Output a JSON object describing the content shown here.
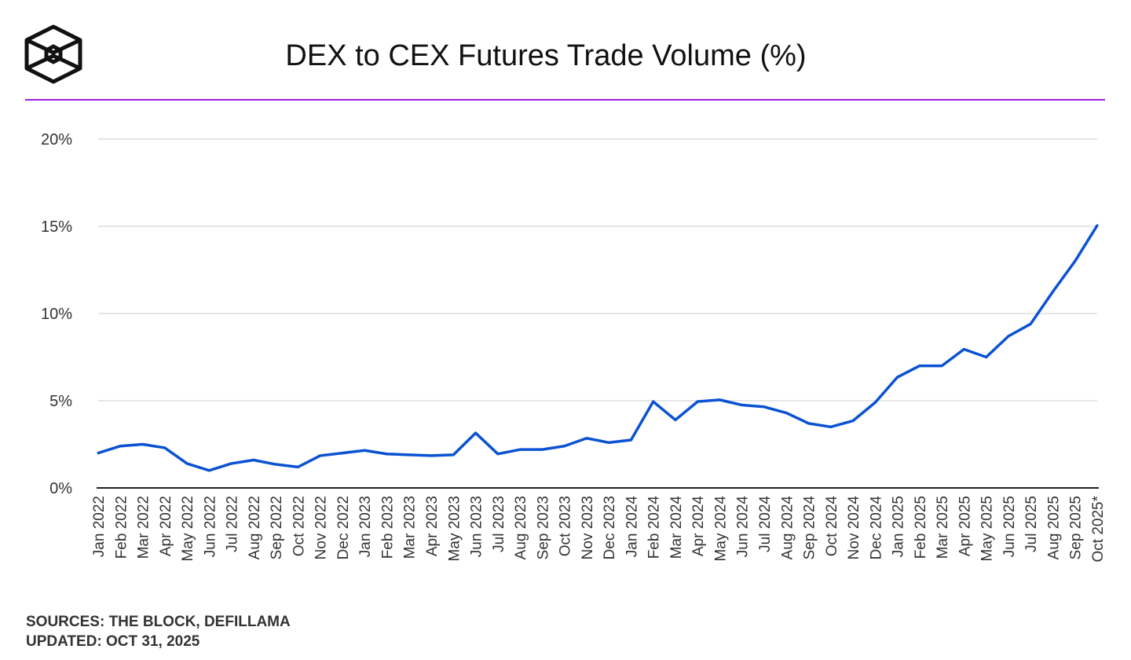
{
  "header": {
    "title": "DEX to CEX Futures Trade Volume (%)",
    "logo": "The Block"
  },
  "footer": {
    "sources": "SOURCES: THE BLOCK, DEFILLAMA",
    "updated": "UPDATED: OCT 31, 2025"
  },
  "colors": {
    "line": "#0a52d1",
    "rule": "#a020e0",
    "grid": "#e6e6e6"
  },
  "chart_data": {
    "type": "line",
    "title": "DEX to CEX Futures Trade Volume (%)",
    "xlabel": "",
    "ylabel": "",
    "ylim": [
      0,
      20
    ],
    "yticks": [
      0,
      5,
      10,
      15,
      20
    ],
    "ytick_labels": [
      "0%",
      "5%",
      "10%",
      "15%",
      "20%"
    ],
    "grid": true,
    "categories": [
      "Jan 2022",
      "Feb 2022",
      "Mar 2022",
      "Apr 2022",
      "May 2022",
      "Jun 2022",
      "Jul 2022",
      "Aug 2022",
      "Sep 2022",
      "Oct 2022",
      "Nov 2022",
      "Dec 2022",
      "Jan 2023",
      "Feb 2023",
      "Mar 2023",
      "Apr 2023",
      "May 2023",
      "Jun 2023",
      "Jul 2023",
      "Aug 2023",
      "Sep 2023",
      "Oct 2023",
      "Nov 2023",
      "Dec 2023",
      "Jan 2024",
      "Feb 2024",
      "Mar 2024",
      "Apr 2024",
      "May 2024",
      "Jun 2024",
      "Jul 2024",
      "Aug 2024",
      "Sep 2024",
      "Oct 2024",
      "Nov 2024",
      "Dec 2024",
      "Jan 2025",
      "Feb 2025",
      "Mar 2025",
      "Apr 2025",
      "May 2025",
      "Jun 2025",
      "Jul 2025",
      "Aug 2025",
      "Sep 2025",
      "Oct 2025*"
    ],
    "series": [
      {
        "name": "DEX to CEX Futures Trade Volume (%)",
        "values": [
          2.0,
          2.4,
          2.5,
          2.3,
          1.4,
          1.0,
          1.4,
          1.6,
          1.35,
          1.2,
          1.85,
          2.0,
          2.15,
          1.95,
          1.9,
          1.85,
          1.9,
          3.15,
          1.95,
          2.2,
          2.2,
          2.4,
          2.85,
          2.6,
          2.75,
          4.95,
          3.9,
          4.95,
          5.05,
          4.75,
          4.65,
          4.3,
          3.7,
          3.5,
          3.85,
          4.9,
          6.35,
          7.0,
          7.0,
          7.95,
          7.5,
          8.7,
          9.4,
          11.25,
          13.0,
          15.05
        ]
      }
    ]
  }
}
